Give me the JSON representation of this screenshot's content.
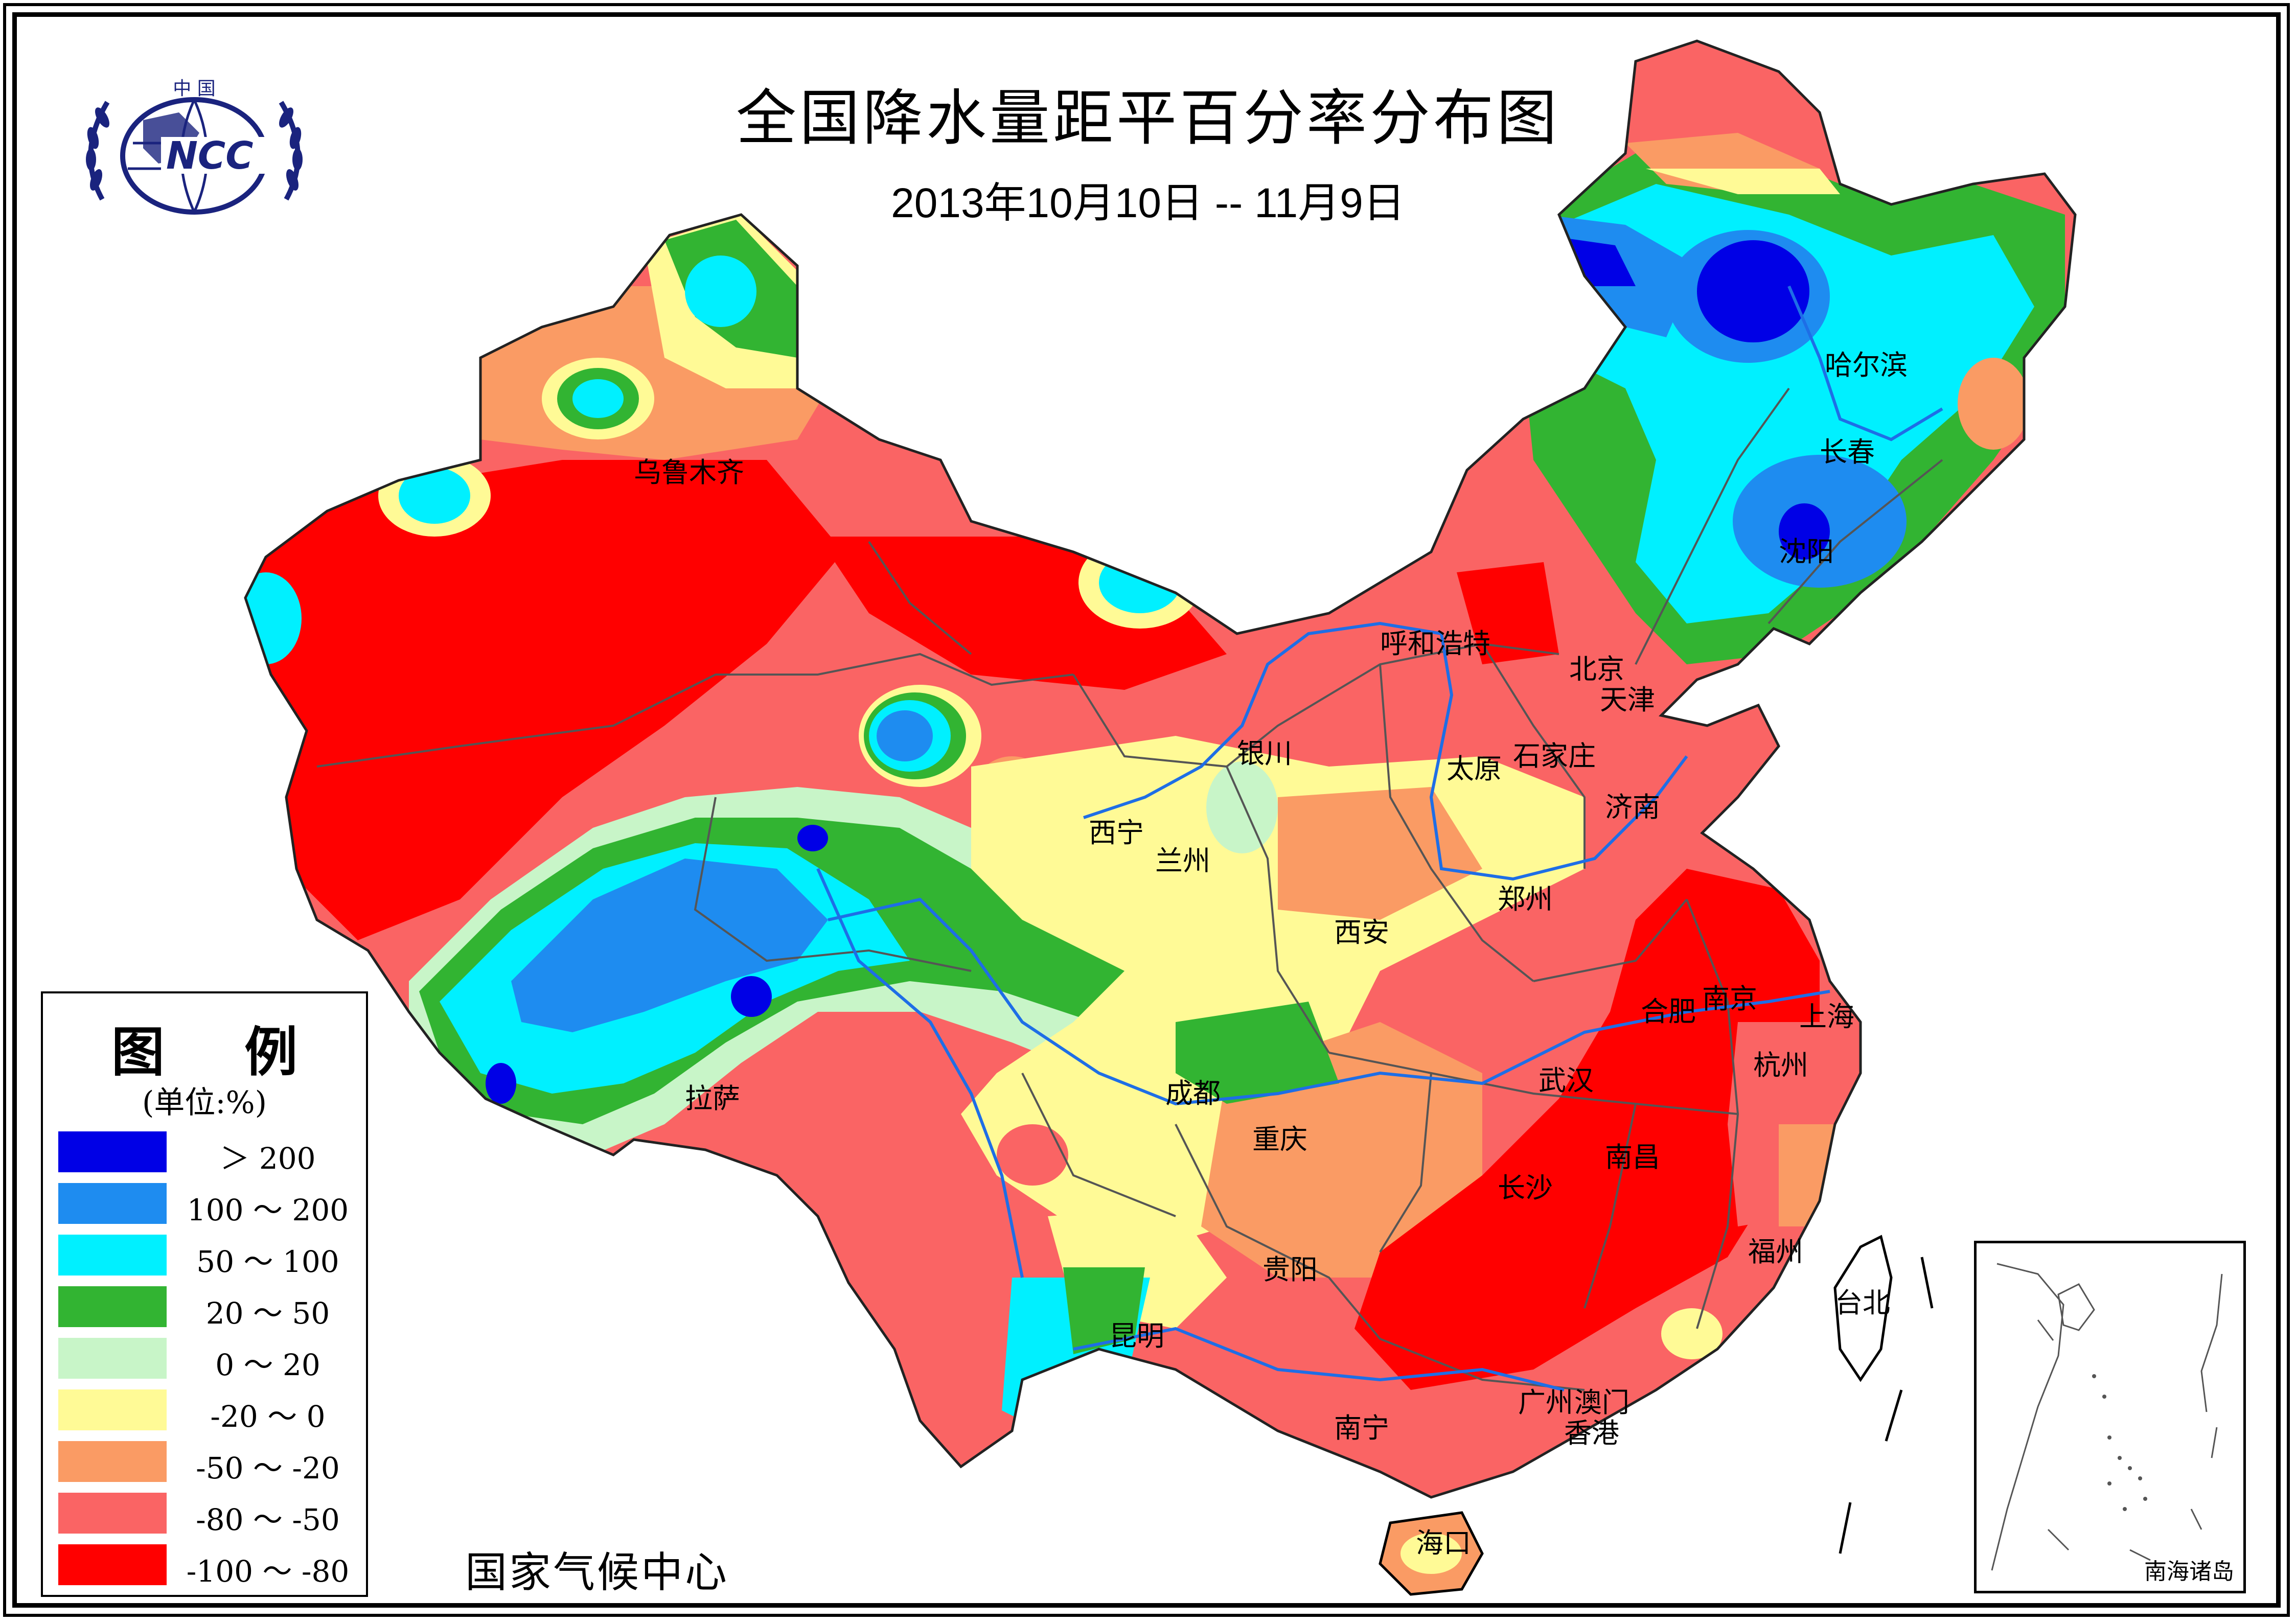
{
  "title": "全国降水量距平百分率分布图",
  "subtitle": "2013年10月10日 -- 11月9日",
  "logo": {
    "text_top": "中 国",
    "text_main": "NCC",
    "icon": "ncc-globe-emblem"
  },
  "legend": {
    "title": "图  例",
    "unit": "(单位:%)",
    "items": [
      {
        "label": "＞ 200",
        "color": "#0000e6"
      },
      {
        "label": "100 ～ 200",
        "color": "#1e8cf0"
      },
      {
        "label": "50 ～ 100",
        "color": "#00f0ff"
      },
      {
        "label": "20 ～ 50",
        "color": "#32b432"
      },
      {
        "label": "0 ～ 20",
        "color": "#c8f5c8"
      },
      {
        "label": "-20 ～ 0",
        "color": "#fffa96"
      },
      {
        "label": "-50 ～ -20",
        "color": "#fa9b64"
      },
      {
        "label": "-80 ～ -50",
        "color": "#fa6464"
      },
      {
        "label": "-100 ～ -80",
        "color": "#ff0000"
      }
    ]
  },
  "source": "国家气候中心",
  "inset_label": "南海诸岛",
  "cities": [
    {
      "name": "乌鲁木齐"
    },
    {
      "name": "哈尔滨"
    },
    {
      "name": "长春"
    },
    {
      "name": "沈阳"
    },
    {
      "name": "呼和浩特"
    },
    {
      "name": "北京"
    },
    {
      "name": "天津"
    },
    {
      "name": "银川"
    },
    {
      "name": "太原"
    },
    {
      "name": "石家庄"
    },
    {
      "name": "济南"
    },
    {
      "name": "西宁"
    },
    {
      "name": "兰州"
    },
    {
      "name": "郑州"
    },
    {
      "name": "西安"
    },
    {
      "name": "合肥"
    },
    {
      "name": "南京"
    },
    {
      "name": "上海"
    },
    {
      "name": "武汉"
    },
    {
      "name": "杭州"
    },
    {
      "name": "拉萨"
    },
    {
      "name": "成都"
    },
    {
      "name": "重庆"
    },
    {
      "name": "长沙"
    },
    {
      "name": "南昌"
    },
    {
      "name": "福州"
    },
    {
      "name": "贵阳"
    },
    {
      "name": "台北"
    },
    {
      "name": "昆明"
    },
    {
      "name": "南宁"
    },
    {
      "name": "广州"
    },
    {
      "name": "澳门"
    },
    {
      "name": "香港"
    },
    {
      "name": "海口"
    }
  ]
}
